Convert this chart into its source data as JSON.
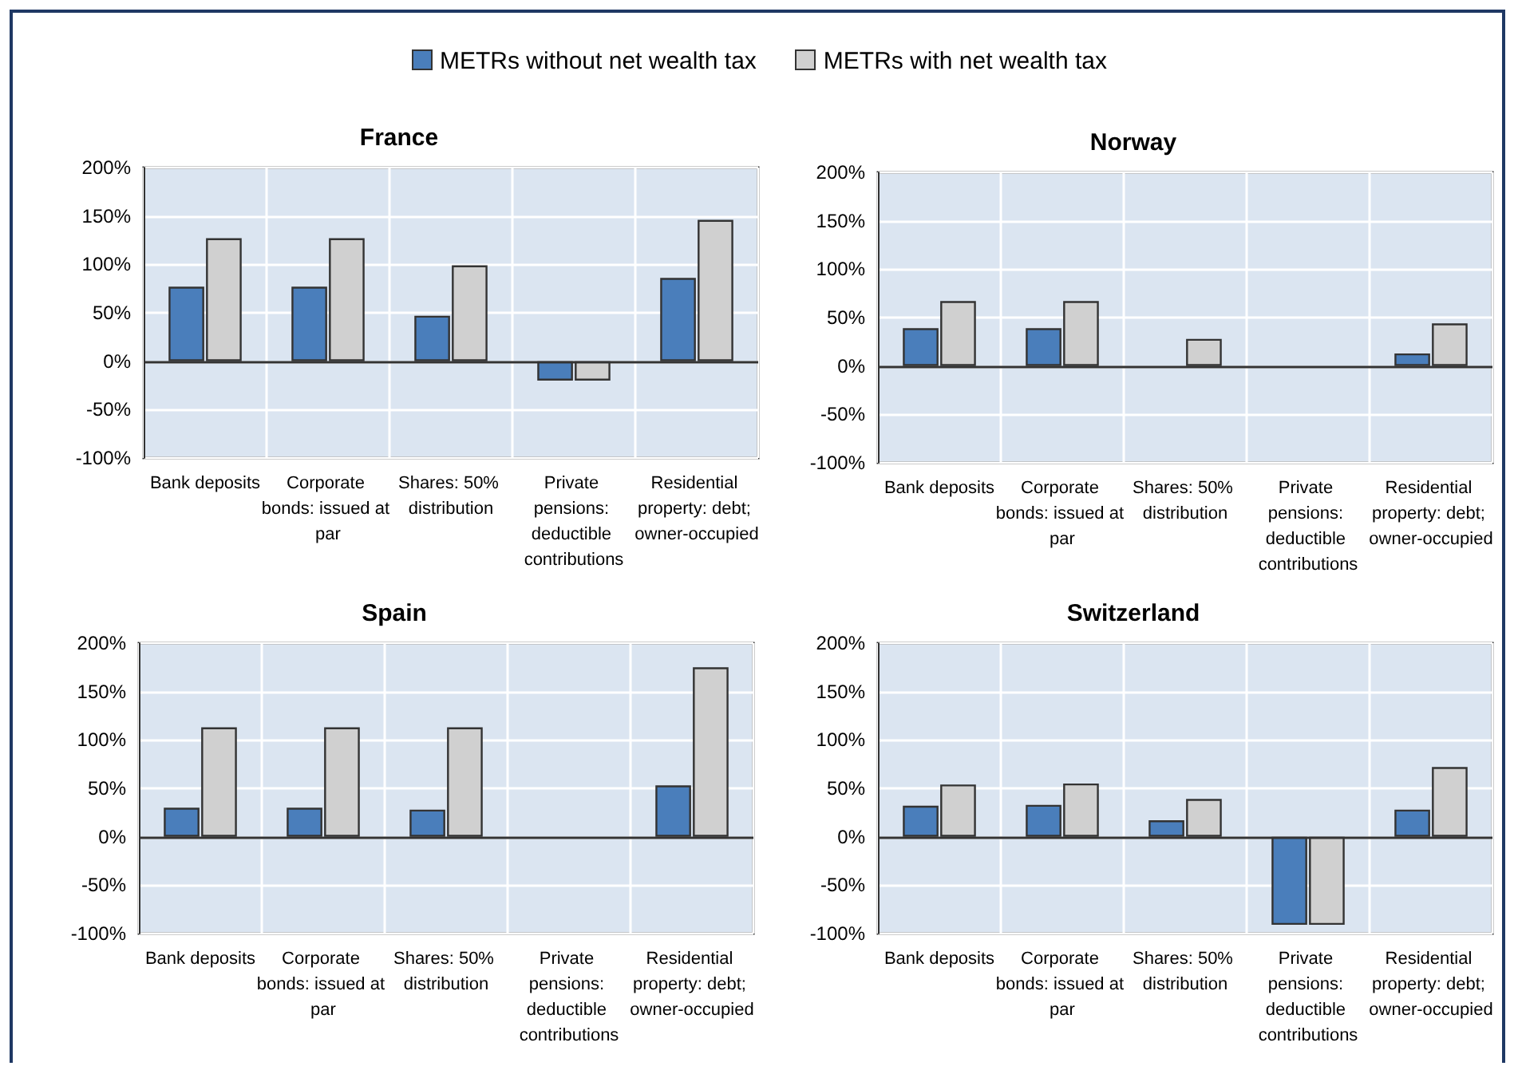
{
  "chart_data": [
    {
      "type": "bar",
      "title": "France",
      "categories": [
        "Bank deposits",
        "Corporate bonds: issued at par",
        "Shares: 50% distribution",
        "Private pensions: deductible contributions",
        "Residential property: debt; owner-occupied"
      ],
      "series": [
        {
          "name": "METRs without net wealth tax",
          "color": "#4a7ebb",
          "values": [
            77,
            77,
            47,
            -20,
            86
          ]
        },
        {
          "name": "METRs with net wealth tax",
          "color": "#d0d0d0",
          "values": [
            127,
            127,
            99,
            -20,
            146
          ]
        }
      ],
      "ylim": [
        -100,
        200
      ],
      "yticks": [
        {
          "value": -100,
          "label": "-100%"
        },
        {
          "value": -50,
          "label": "-50%"
        },
        {
          "value": 0,
          "label": "0%"
        },
        {
          "value": 50,
          "label": "50%"
        },
        {
          "value": 100,
          "label": "100%"
        },
        {
          "value": 150,
          "label": "150%"
        },
        {
          "value": 200,
          "label": "200%"
        }
      ],
      "grid": true,
      "legend": "top"
    },
    {
      "type": "bar",
      "title": "Norway",
      "categories": [
        "Bank deposits",
        "Corporate bonds: issued at par",
        "Shares: 50% distribution",
        "Private pensions: deductible contributions",
        "Residential property: debt; owner-occupied"
      ],
      "series": [
        {
          "color": "#4a7ebb",
          "values": [
            39,
            39,
            null,
            null,
            13
          ]
        },
        {
          "color": "#d0d0d0",
          "values": [
            67,
            67,
            28,
            null,
            44
          ]
        }
      ],
      "ylim": [
        -100,
        200
      ],
      "yticks": [
        {
          "value": -100,
          "label": "-100%"
        },
        {
          "value": -50,
          "label": "-50%"
        },
        {
          "value": 0,
          "label": "0%"
        },
        {
          "value": 50,
          "label": "50%"
        },
        {
          "value": 100,
          "label": "100%"
        },
        {
          "value": 150,
          "label": "150%"
        },
        {
          "value": 200,
          "label": "200%"
        }
      ],
      "grid": true
    },
    {
      "type": "bar",
      "title": "Spain",
      "categories": [
        "Bank deposits",
        "Corporate bonds: issued at par",
        "Shares: 50% distribution",
        "Private pensions: deductible contributions",
        "Residential property: debt; owner-occupied"
      ],
      "series": [
        {
          "color": "#4a7ebb",
          "values": [
            30,
            30,
            28,
            null,
            53
          ]
        },
        {
          "color": "#d0d0d0",
          "values": [
            113,
            113,
            113,
            null,
            175
          ]
        }
      ],
      "ylim": [
        -100,
        200
      ],
      "yticks": [
        {
          "value": -100,
          "label": "-100%"
        },
        {
          "value": -50,
          "label": "-50%"
        },
        {
          "value": 0,
          "label": "0%"
        },
        {
          "value": 50,
          "label": "50%"
        },
        {
          "value": 100,
          "label": "100%"
        },
        {
          "value": 150,
          "label": "150%"
        },
        {
          "value": 200,
          "label": "200%"
        }
      ],
      "grid": true
    },
    {
      "type": "bar",
      "title": "Switzerland",
      "categories": [
        "Bank deposits",
        "Corporate bonds: issued at par",
        "Shares: 50% distribution",
        "Private pensions: deductible contributions",
        "Residential property: debt; owner-occupied"
      ],
      "series": [
        {
          "color": "#4a7ebb",
          "values": [
            32,
            33,
            17,
            -91,
            28
          ]
        },
        {
          "color": "#d0d0d0",
          "values": [
            54,
            55,
            39,
            -91,
            72
          ]
        }
      ],
      "ylim": [
        -100,
        200
      ],
      "yticks": [
        {
          "value": -100,
          "label": "-100%"
        },
        {
          "value": -50,
          "label": "-50%"
        },
        {
          "value": 0,
          "label": "0%"
        },
        {
          "value": 50,
          "label": "50%"
        },
        {
          "value": 100,
          "label": "100%"
        },
        {
          "value": 150,
          "label": "150%"
        },
        {
          "value": 200,
          "label": "200%"
        }
      ],
      "grid": true
    }
  ]
}
